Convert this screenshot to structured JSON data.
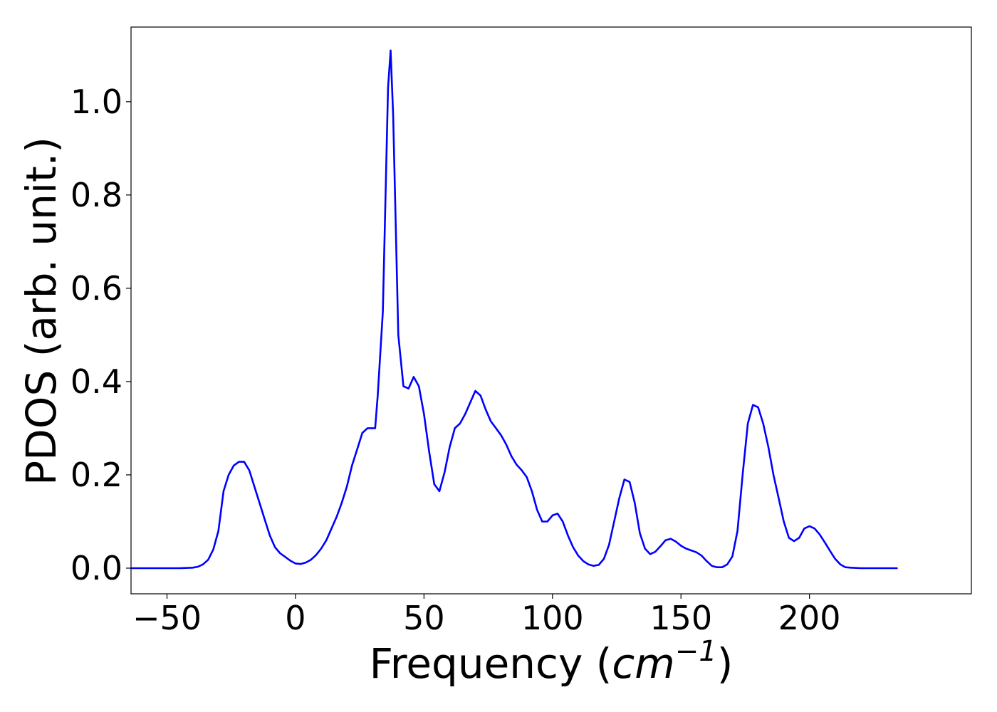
{
  "chart_data": {
    "type": "line",
    "title": "",
    "xlabel": {
      "prefix": "Frequency (",
      "unit_base": "cm",
      "unit_exponent": "−1",
      "suffix": ")"
    },
    "ylabel": "PDOS (arb. unit.)",
    "xlim": [
      -64,
      263
    ],
    "ylim": [
      -0.055,
      1.16
    ],
    "xticks": [
      {
        "value": -50,
        "label": "−50"
      },
      {
        "value": 0,
        "label": "0"
      },
      {
        "value": 50,
        "label": "50"
      },
      {
        "value": 100,
        "label": "100"
      },
      {
        "value": 150,
        "label": "150"
      },
      {
        "value": 200,
        "label": "200"
      }
    ],
    "yticks": [
      {
        "value": 0.0,
        "label": "0.0"
      },
      {
        "value": 0.2,
        "label": "0.2"
      },
      {
        "value": 0.4,
        "label": "0.4"
      },
      {
        "value": 0.6,
        "label": "0.6"
      },
      {
        "value": 0.8,
        "label": "0.8"
      },
      {
        "value": 1.0,
        "label": "1.0"
      }
    ],
    "grid": false,
    "series": [
      {
        "color": "#0000ff",
        "x": [
          -64,
          -60,
          -55,
          -50,
          -45,
          -40,
          -38,
          -36,
          -34,
          -32,
          -30,
          -28,
          -26,
          -24,
          -22,
          -20,
          -18,
          -16,
          -14,
          -12,
          -10,
          -8,
          -6,
          -4,
          -2,
          0,
          2,
          4,
          6,
          8,
          10,
          12,
          14,
          16,
          18,
          20,
          22,
          24,
          26,
          28,
          30,
          31,
          32,
          34,
          36,
          37,
          38,
          40,
          42,
          44,
          46,
          48,
          50,
          52,
          54,
          56,
          58,
          60,
          62,
          64,
          66,
          68,
          70,
          72,
          74,
          76,
          78,
          80,
          82,
          84,
          86,
          88,
          90,
          92,
          94,
          96,
          98,
          100,
          102,
          104,
          106,
          108,
          110,
          112,
          114,
          116,
          118,
          120,
          122,
          124,
          126,
          128,
          130,
          132,
          134,
          136,
          138,
          140,
          142,
          144,
          146,
          148,
          150,
          152,
          154,
          156,
          158,
          160,
          162,
          164,
          166,
          168,
          170,
          172,
          174,
          176,
          178,
          180,
          182,
          184,
          186,
          188,
          190,
          192,
          194,
          196,
          198,
          200,
          202,
          204,
          206,
          208,
          210,
          212,
          214,
          216,
          220,
          225,
          230,
          234
        ],
        "y": [
          0.0,
          0.0,
          0.0,
          0.0,
          0.0,
          0.001,
          0.003,
          0.008,
          0.018,
          0.04,
          0.08,
          0.165,
          0.2,
          0.22,
          0.228,
          0.228,
          0.21,
          0.175,
          0.14,
          0.105,
          0.07,
          0.045,
          0.032,
          0.024,
          0.016,
          0.01,
          0.009,
          0.012,
          0.018,
          0.028,
          0.042,
          0.06,
          0.085,
          0.11,
          0.14,
          0.175,
          0.22,
          0.255,
          0.29,
          0.3,
          0.3,
          0.3,
          0.37,
          0.55,
          1.03,
          1.11,
          0.97,
          0.5,
          0.39,
          0.385,
          0.41,
          0.39,
          0.33,
          0.25,
          0.18,
          0.165,
          0.205,
          0.26,
          0.3,
          0.31,
          0.33,
          0.355,
          0.38,
          0.37,
          0.34,
          0.315,
          0.3,
          0.285,
          0.265,
          0.24,
          0.222,
          0.21,
          0.195,
          0.165,
          0.125,
          0.1,
          0.1,
          0.113,
          0.117,
          0.1,
          0.07,
          0.045,
          0.027,
          0.015,
          0.008,
          0.005,
          0.007,
          0.02,
          0.05,
          0.1,
          0.15,
          0.19,
          0.185,
          0.14,
          0.075,
          0.042,
          0.03,
          0.035,
          0.047,
          0.06,
          0.063,
          0.057,
          0.048,
          0.042,
          0.038,
          0.034,
          0.027,
          0.015,
          0.005,
          0.002,
          0.002,
          0.008,
          0.025,
          0.08,
          0.2,
          0.31,
          0.35,
          0.345,
          0.31,
          0.26,
          0.2,
          0.15,
          0.1,
          0.065,
          0.058,
          0.065,
          0.085,
          0.09,
          0.085,
          0.072,
          0.055,
          0.037,
          0.02,
          0.008,
          0.002,
          0.001,
          0.0,
          0.0,
          0.0,
          0.0
        ]
      }
    ]
  }
}
